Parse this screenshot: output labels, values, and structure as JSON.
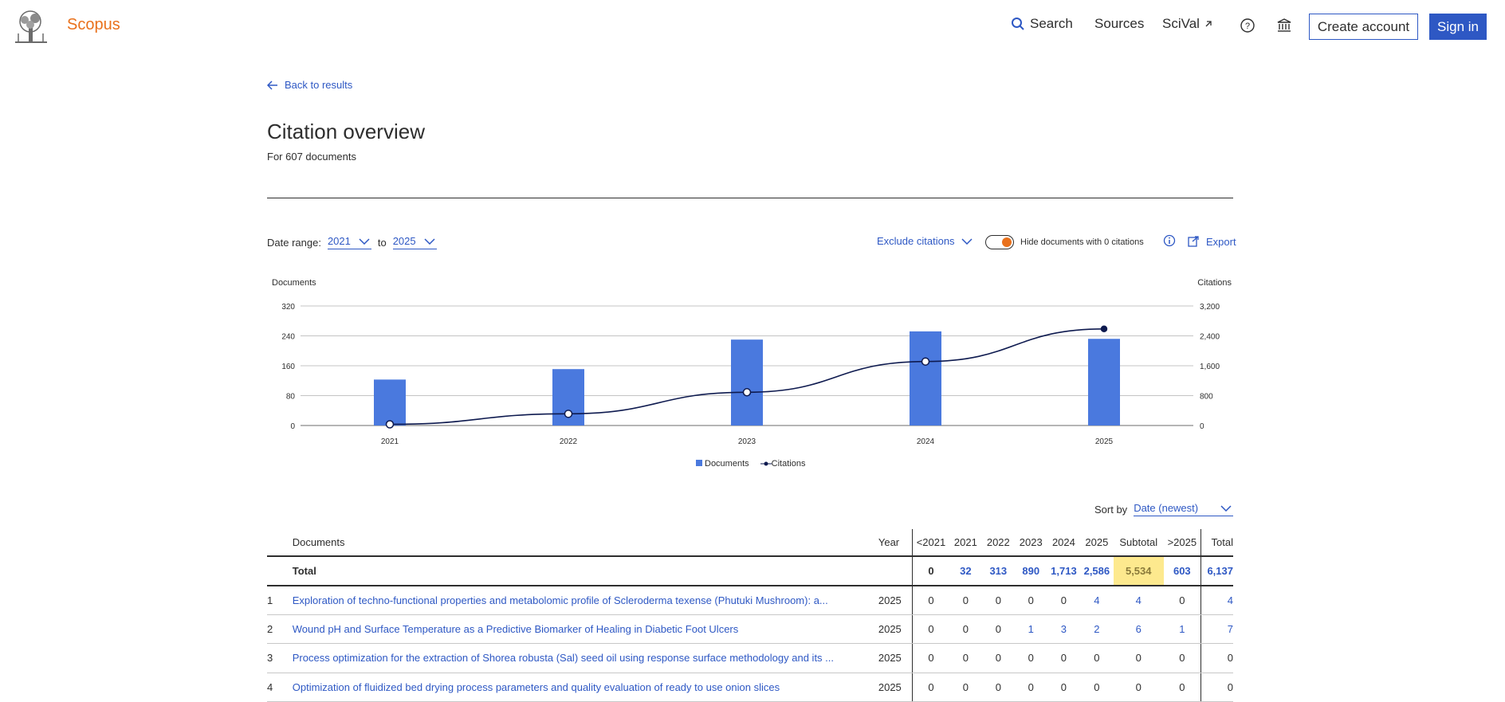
{
  "header": {
    "brand": "Scopus",
    "nav": {
      "search": "Search",
      "sources": "Sources",
      "scival": "SciVal"
    },
    "create_account": "Create account",
    "sign_in": "Sign in"
  },
  "page": {
    "back": "Back to results",
    "title": "Citation overview",
    "subtitle": "For 607 documents"
  },
  "controls": {
    "date_range_label": "Date range:",
    "from_year": "2021",
    "to_label": "to",
    "to_year": "2025",
    "exclude": "Exclude citations",
    "hide_zero": "Hide documents with 0 citations",
    "export": "Export",
    "sort_by_label": "Sort by",
    "sort_by_value": "Date (newest)"
  },
  "chart_data": {
    "type": "bar",
    "categories": [
      "2021",
      "2022",
      "2023",
      "2024",
      "2025"
    ],
    "y_left_label": "Documents",
    "y_right_label": "Citations",
    "y_left_ticks": [
      "320",
      "240",
      "160",
      "80",
      "0"
    ],
    "y_right_ticks": [
      "3,200",
      "2,400",
      "1,600",
      "800",
      "0"
    ],
    "ylim_left": [
      0,
      320
    ],
    "ylim_right": [
      0,
      3200
    ],
    "series": [
      {
        "name": "Documents",
        "type": "bar",
        "axis": "left",
        "values": [
          123,
          151,
          230,
          252,
          232
        ]
      },
      {
        "name": "Citations",
        "type": "line",
        "axis": "right",
        "values": [
          32,
          313,
          890,
          1713,
          2586
        ]
      }
    ],
    "legend_position": "bottom-center",
    "grid": true,
    "colors": {
      "bar": "#4a79de",
      "line": "#0e1a4f"
    }
  },
  "table": {
    "headers": {
      "documents": "Documents",
      "year": "Year",
      "lt": "<2021",
      "y2021": "2021",
      "y2022": "2022",
      "y2023": "2023",
      "y2024": "2024",
      "y2025": "2025",
      "subtotal": "Subtotal",
      "gt": ">2025",
      "total": "Total"
    },
    "total_row": {
      "label": "Total",
      "lt": "0",
      "y2021": "32",
      "y2022": "313",
      "y2023": "890",
      "y2024": "1,713",
      "y2025": "2,586",
      "subtotal": "5,534",
      "gt": "603",
      "total": "6,137"
    },
    "rows": [
      {
        "idx": "1",
        "title": "Exploration of techno-functional properties and metabolomic profile of Scleroderma texense (Phutuki Mushroom): a...",
        "year": "2025",
        "lt": "0",
        "y2021": "0",
        "y2022": "0",
        "y2023": "0",
        "y2024": "0",
        "y2025": "4",
        "subtotal": "4",
        "gt": "0",
        "total": "4"
      },
      {
        "idx": "2",
        "title": "Wound pH and Surface Temperature as a Predictive Biomarker of Healing in Diabetic Foot Ulcers",
        "year": "2025",
        "lt": "0",
        "y2021": "0",
        "y2022": "0",
        "y2023": "1",
        "y2024": "3",
        "y2025": "2",
        "subtotal": "6",
        "gt": "1",
        "total": "7"
      },
      {
        "idx": "3",
        "title": "Process optimization for the extraction of Shorea robusta (Sal) seed oil using response surface methodology and its ...",
        "year": "2025",
        "lt": "0",
        "y2021": "0",
        "y2022": "0",
        "y2023": "0",
        "y2024": "0",
        "y2025": "0",
        "subtotal": "0",
        "gt": "0",
        "total": "0"
      },
      {
        "idx": "4",
        "title": "Optimization of fluidized bed drying process parameters and quality evaluation of ready to use onion slices",
        "year": "2025",
        "lt": "0",
        "y2021": "0",
        "y2022": "0",
        "y2023": "0",
        "y2024": "0",
        "y2025": "0",
        "subtotal": "0",
        "gt": "0",
        "total": "0"
      }
    ]
  }
}
